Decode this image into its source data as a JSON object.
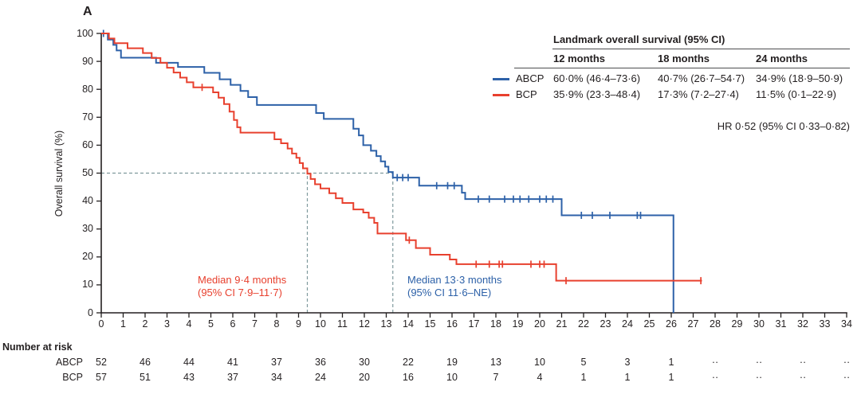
{
  "panel_label": "A",
  "colors": {
    "abcp": "#2d61a8",
    "bcp": "#e8402e",
    "axis": "#231f20",
    "dashed": "#7f9a9d",
    "rule": "#4d4e50"
  },
  "legend": {
    "title": "Landmark overall survival (95% CI)",
    "columns": [
      "12 months",
      "18 months",
      "24 months"
    ],
    "rows": [
      {
        "label": "ABCP",
        "values": [
          "60·0% (46·4–73·6)",
          "40·7% (26·7–54·7)",
          "34·9% (18·9–50·9)"
        ]
      },
      {
        "label": "BCP",
        "values": [
          "35·9% (23·3–48·4)",
          "17·3% (7·2–27·4)",
          "11·5% (0·1–22·9)"
        ]
      }
    ]
  },
  "hr_text": "HR 0·52 (95% CI 0·33–0·82)",
  "annotations": {
    "bcp_median": {
      "line1": "Median 9·4 months",
      "line2": "(95% CI 7·9–11·7)"
    },
    "abcp_median": {
      "line1": "Median 13·3 months",
      "line2": "(95% CI 11·6–NE)"
    }
  },
  "number_at_risk": {
    "label": "Number at risk",
    "months": [
      0,
      2,
      4,
      6,
      8,
      10,
      12,
      14,
      16,
      18,
      20,
      22,
      24,
      26,
      28,
      30,
      32,
      34
    ],
    "rows": [
      {
        "label": "ABCP",
        "values": [
          "52",
          "46",
          "44",
          "41",
          "37",
          "36",
          "30",
          "22",
          "19",
          "13",
          "10",
          "5",
          "3",
          "1",
          "··",
          "··",
          "··",
          "··"
        ]
      },
      {
        "label": "BCP",
        "values": [
          "57",
          "51",
          "43",
          "37",
          "34",
          "24",
          "20",
          "16",
          "10",
          "7",
          "4",
          "1",
          "1",
          "1",
          "··",
          "··",
          "··",
          "··"
        ]
      }
    ]
  },
  "chart_data": {
    "type": "line",
    "subtype": "kaplan-meier-step",
    "title": "A",
    "xlabel": "",
    "ylabel": "Overall survival (%)",
    "xlim": [
      0,
      34
    ],
    "ylim": [
      0,
      100
    ],
    "x_tick_step": 1,
    "y_tick_step": 10,
    "grid": false,
    "legend_position": "top-right",
    "medians": {
      "abcp_months": 13.3,
      "bcp_months": 9.4,
      "reference_pct": 50
    },
    "series": [
      {
        "name": "ABCP",
        "color": "#2d61a8",
        "steps": [
          [
            0,
            100
          ],
          [
            0.3,
            97.8
          ],
          [
            0.55,
            95.9
          ],
          [
            0.7,
            93.9
          ],
          [
            0.9,
            91.3
          ],
          [
            2.5,
            89.5
          ],
          [
            3.5,
            88.0
          ],
          [
            4.7,
            85.9
          ],
          [
            5.4,
            83.6
          ],
          [
            5.9,
            81.6
          ],
          [
            6.35,
            79.4
          ],
          [
            6.7,
            77.2
          ],
          [
            7.1,
            74.4
          ],
          [
            9.8,
            71.5
          ],
          [
            10.15,
            69.4
          ],
          [
            11.5,
            65.9
          ],
          [
            11.75,
            63.5
          ],
          [
            11.95,
            60.0
          ],
          [
            12.3,
            58.0
          ],
          [
            12.55,
            56.1
          ],
          [
            12.75,
            54.2
          ],
          [
            12.95,
            52.3
          ],
          [
            13.1,
            50.4
          ],
          [
            13.3,
            48.4
          ],
          [
            14.5,
            45.5
          ],
          [
            16.45,
            43.0
          ],
          [
            16.6,
            40.7
          ],
          [
            21.0,
            34.9
          ]
        ],
        "censors": [
          [
            0.1,
            100
          ],
          [
            13.5,
            48.4
          ],
          [
            13.75,
            48.4
          ],
          [
            14.0,
            48.4
          ],
          [
            15.3,
            45.5
          ],
          [
            15.8,
            45.5
          ],
          [
            16.1,
            45.5
          ],
          [
            17.2,
            40.7
          ],
          [
            17.7,
            40.7
          ],
          [
            18.4,
            40.7
          ],
          [
            18.8,
            40.7
          ],
          [
            19.1,
            40.7
          ],
          [
            19.5,
            40.7
          ],
          [
            20.0,
            40.7
          ],
          [
            20.3,
            40.7
          ],
          [
            20.6,
            40.7
          ],
          [
            21.9,
            34.9
          ],
          [
            22.4,
            34.9
          ],
          [
            23.2,
            34.9
          ],
          [
            24.45,
            34.9
          ],
          [
            24.6,
            34.9
          ]
        ],
        "drop_to_zero_at": 26.1
      },
      {
        "name": "BCP",
        "color": "#e8402e",
        "steps": [
          [
            0,
            100
          ],
          [
            0.35,
            98.2
          ],
          [
            0.6,
            96.5
          ],
          [
            1.2,
            94.7
          ],
          [
            1.9,
            93.0
          ],
          [
            2.3,
            91.2
          ],
          [
            2.7,
            89.5
          ],
          [
            3.0,
            87.7
          ],
          [
            3.3,
            86.0
          ],
          [
            3.6,
            84.2
          ],
          [
            3.9,
            82.5
          ],
          [
            4.2,
            80.7
          ],
          [
            5.1,
            78.9
          ],
          [
            5.35,
            77.0
          ],
          [
            5.6,
            74.7
          ],
          [
            5.85,
            72.0
          ],
          [
            6.05,
            69.0
          ],
          [
            6.2,
            66.4
          ],
          [
            6.35,
            64.5
          ],
          [
            7.9,
            62.1
          ],
          [
            8.2,
            60.7
          ],
          [
            8.5,
            58.8
          ],
          [
            8.7,
            57.0
          ],
          [
            8.9,
            55.5
          ],
          [
            9.05,
            53.6
          ],
          [
            9.2,
            51.7
          ],
          [
            9.4,
            49.8
          ],
          [
            9.55,
            47.9
          ],
          [
            9.75,
            46.0
          ],
          [
            10.0,
            44.5
          ],
          [
            10.4,
            42.8
          ],
          [
            10.7,
            41.0
          ],
          [
            11.0,
            39.3
          ],
          [
            11.5,
            37.0
          ],
          [
            11.95,
            35.9
          ],
          [
            12.2,
            34.0
          ],
          [
            12.45,
            32.2
          ],
          [
            12.6,
            28.4
          ],
          [
            13.9,
            26.0
          ],
          [
            14.35,
            23.2
          ],
          [
            15.0,
            20.8
          ],
          [
            15.9,
            19.1
          ],
          [
            16.2,
            17.4
          ],
          [
            20.75,
            11.5
          ]
        ],
        "censors": [
          [
            4.6,
            80.7
          ],
          [
            14.05,
            26.0
          ],
          [
            17.1,
            17.4
          ],
          [
            17.7,
            17.4
          ],
          [
            18.15,
            17.4
          ],
          [
            18.3,
            17.4
          ],
          [
            19.6,
            17.4
          ],
          [
            20.0,
            17.4
          ],
          [
            20.2,
            17.4
          ],
          [
            21.2,
            11.5
          ],
          [
            27.35,
            11.5
          ]
        ],
        "end_at": 27.4
      }
    ]
  }
}
